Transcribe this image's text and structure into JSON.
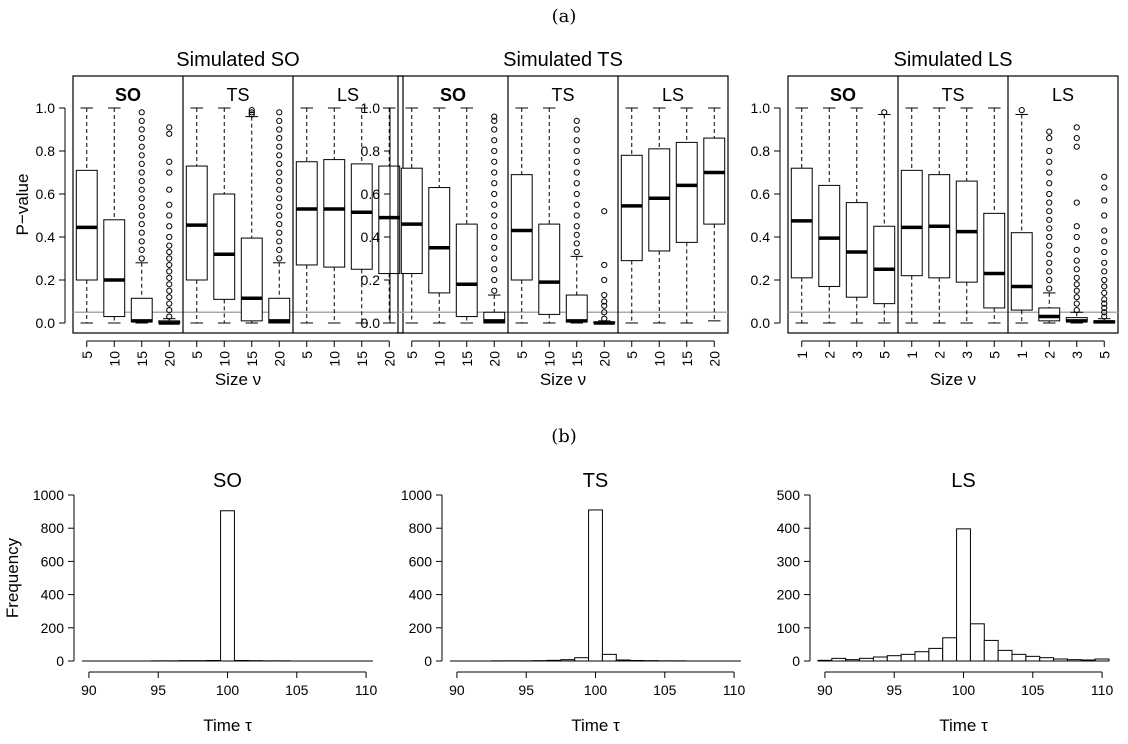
{
  "panel_labels": {
    "a": "(a)",
    "b": "(b)"
  },
  "chart_data": [
    {
      "type": "boxplot",
      "title": "Simulated SO",
      "ylabel": "P−value",
      "xlabel": "Size ν",
      "ylim": [
        0,
        1
      ],
      "yticks": [
        "0.0",
        "0.2",
        "0.4",
        "0.6",
        "0.8",
        "1.0"
      ],
      "reference_line": 0.05,
      "groups": [
        {
          "name": "SO",
          "boxes": [
            {
              "label": "5",
              "whislo": 0,
              "q1": 0.2,
              "med": 0.445,
              "q3": 0.71,
              "whishi": 1.0,
              "outliers": []
            },
            {
              "label": "10",
              "whislo": 0,
              "q1": 0.03,
              "med": 0.2,
              "q3": 0.48,
              "whishi": 1.0,
              "outliers": []
            },
            {
              "label": "15",
              "whislo": 0,
              "q1": 0.005,
              "med": 0.01,
              "q3": 0.115,
              "whishi": 0.28,
              "outliers": [
                0.3,
                0.34,
                0.38,
                0.42,
                0.46,
                0.5,
                0.54,
                0.58,
                0.62,
                0.66,
                0.7,
                0.74,
                0.78,
                0.82,
                0.86,
                0.9,
                0.94,
                0.98
              ]
            },
            {
              "label": "20",
              "whislo": 0,
              "q1": 0.0,
              "med": 0.0,
              "q3": 0.01,
              "whishi": 0.02,
              "outliers": [
                0.03,
                0.06,
                0.09,
                0.12,
                0.15,
                0.18,
                0.21,
                0.24,
                0.27,
                0.3,
                0.33,
                0.36,
                0.4,
                0.45,
                0.5,
                0.55,
                0.62,
                0.7,
                0.75,
                0.88,
                0.91
              ]
            }
          ]
        },
        {
          "name": "TS",
          "boxes": [
            {
              "label": "5",
              "whislo": 0,
              "q1": 0.2,
              "med": 0.455,
              "q3": 0.73,
              "whishi": 1.0,
              "outliers": []
            },
            {
              "label": "10",
              "whislo": 0,
              "q1": 0.11,
              "med": 0.32,
              "q3": 0.6,
              "whishi": 1.0,
              "outliers": []
            },
            {
              "label": "15",
              "whislo": 0,
              "q1": 0.01,
              "med": 0.115,
              "q3": 0.395,
              "whishi": 0.96,
              "outliers": [
                0.97,
                0.98,
                0.99
              ]
            },
            {
              "label": "20",
              "whislo": 0,
              "q1": 0.0,
              "med": 0.01,
              "q3": 0.115,
              "whishi": 0.28,
              "outliers": [
                0.3,
                0.34,
                0.38,
                0.42,
                0.46,
                0.5,
                0.54,
                0.58,
                0.62,
                0.66,
                0.7,
                0.74,
                0.78,
                0.82,
                0.86,
                0.9,
                0.94,
                0.98
              ]
            }
          ]
        },
        {
          "name": "LS",
          "boxes": [
            {
              "label": "5",
              "whislo": 0,
              "q1": 0.27,
              "med": 0.53,
              "q3": 0.75,
              "whishi": 1.0,
              "outliers": []
            },
            {
              "label": "10",
              "whislo": 0,
              "q1": 0.26,
              "med": 0.53,
              "q3": 0.76,
              "whishi": 1.0,
              "outliers": []
            },
            {
              "label": "15",
              "whislo": 0,
              "q1": 0.25,
              "med": 0.515,
              "q3": 0.74,
              "whishi": 1.0,
              "outliers": []
            },
            {
              "label": "20",
              "whislo": 0,
              "q1": 0.23,
              "med": 0.49,
              "q3": 0.73,
              "whishi": 1.0,
              "outliers": []
            }
          ]
        }
      ]
    },
    {
      "type": "boxplot",
      "title": "Simulated TS",
      "ylabel": "",
      "xlabel": "Size ν",
      "ylim": [
        0,
        1
      ],
      "yticks": [
        "0.0",
        "0.2",
        "0.4",
        "0.6",
        "0.8",
        "1.0"
      ],
      "reference_line": 0.05,
      "groups": [
        {
          "name": "SO",
          "boxes": [
            {
              "label": "5",
              "whislo": 0,
              "q1": 0.23,
              "med": 0.46,
              "q3": 0.72,
              "whishi": 1.0,
              "outliers": []
            },
            {
              "label": "10",
              "whislo": 0,
              "q1": 0.14,
              "med": 0.35,
              "q3": 0.63,
              "whishi": 1.0,
              "outliers": []
            },
            {
              "label": "15",
              "whislo": 0,
              "q1": 0.03,
              "med": 0.18,
              "q3": 0.46,
              "whishi": 1.0,
              "outliers": []
            },
            {
              "label": "20",
              "whislo": 0,
              "q1": 0.0,
              "med": 0.01,
              "q3": 0.05,
              "whishi": 0.13,
              "outliers": [
                0.15,
                0.2,
                0.25,
                0.3,
                0.35,
                0.4,
                0.45,
                0.5,
                0.55,
                0.6,
                0.65,
                0.7,
                0.75,
                0.8,
                0.85,
                0.9,
                0.94,
                0.96
              ]
            }
          ]
        },
        {
          "name": "TS",
          "boxes": [
            {
              "label": "5",
              "whislo": 0,
              "q1": 0.2,
              "med": 0.43,
              "q3": 0.69,
              "whishi": 1.0,
              "outliers": []
            },
            {
              "label": "10",
              "whislo": 0,
              "q1": 0.04,
              "med": 0.19,
              "q3": 0.46,
              "whishi": 1.0,
              "outliers": []
            },
            {
              "label": "15",
              "whislo": 0,
              "q1": 0.005,
              "med": 0.01,
              "q3": 0.13,
              "whishi": 0.31,
              "outliers": [
                0.33,
                0.37,
                0.41,
                0.45,
                0.5,
                0.55,
                0.6,
                0.65,
                0.7,
                0.75,
                0.8,
                0.85,
                0.9,
                0.94
              ]
            },
            {
              "label": "20",
              "whislo": 0,
              "q1": 0.0,
              "med": 0.0,
              "q3": 0.005,
              "whishi": 0.01,
              "outliers": [
                0.02,
                0.05,
                0.08,
                0.1,
                0.13,
                0.2,
                0.27,
                0.52
              ]
            }
          ]
        },
        {
          "name": "LS",
          "boxes": [
            {
              "label": "5",
              "whislo": 0,
              "q1": 0.29,
              "med": 0.545,
              "q3": 0.78,
              "whishi": 1.0,
              "outliers": []
            },
            {
              "label": "10",
              "whislo": 0,
              "q1": 0.335,
              "med": 0.58,
              "q3": 0.81,
              "whishi": 1.0,
              "outliers": []
            },
            {
              "label": "15",
              "whislo": 0,
              "q1": 0.375,
              "med": 0.64,
              "q3": 0.84,
              "whishi": 1.0,
              "outliers": []
            },
            {
              "label": "20",
              "whislo": 0.01,
              "q1": 0.46,
              "med": 0.7,
              "q3": 0.86,
              "whishi": 1.0,
              "outliers": []
            }
          ]
        }
      ]
    },
    {
      "type": "boxplot",
      "title": "Simulated LS",
      "ylabel": "",
      "xlabel": "Size ν",
      "ylim": [
        0,
        1
      ],
      "yticks": [
        "0.0",
        "0.2",
        "0.4",
        "0.6",
        "0.8",
        "1.0"
      ],
      "reference_line": 0.05,
      "groups": [
        {
          "name": "SO",
          "boxes": [
            {
              "label": "1",
              "whislo": 0,
              "q1": 0.21,
              "med": 0.475,
              "q3": 0.72,
              "whishi": 1.0,
              "outliers": []
            },
            {
              "label": "2",
              "whislo": 0,
              "q1": 0.17,
              "med": 0.395,
              "q3": 0.64,
              "whishi": 1.0,
              "outliers": []
            },
            {
              "label": "3",
              "whislo": 0,
              "q1": 0.12,
              "med": 0.33,
              "q3": 0.56,
              "whishi": 1.0,
              "outliers": []
            },
            {
              "label": "5",
              "whislo": 0,
              "q1": 0.09,
              "med": 0.25,
              "q3": 0.45,
              "whishi": 0.97,
              "outliers": [
                0.98
              ]
            }
          ]
        },
        {
          "name": "TS",
          "boxes": [
            {
              "label": "1",
              "whislo": 0,
              "q1": 0.22,
              "med": 0.445,
              "q3": 0.71,
              "whishi": 1.0,
              "outliers": []
            },
            {
              "label": "2",
              "whislo": 0,
              "q1": 0.21,
              "med": 0.45,
              "q3": 0.69,
              "whishi": 1.0,
              "outliers": []
            },
            {
              "label": "3",
              "whislo": 0,
              "q1": 0.19,
              "med": 0.425,
              "q3": 0.66,
              "whishi": 1.0,
              "outliers": []
            },
            {
              "label": "5",
              "whislo": 0,
              "q1": 0.07,
              "med": 0.23,
              "q3": 0.51,
              "whishi": 1.0,
              "outliers": []
            }
          ]
        },
        {
          "name": "LS",
          "boxes": [
            {
              "label": "1",
              "whislo": 0,
              "q1": 0.06,
              "med": 0.17,
              "q3": 0.42,
              "whishi": 0.97,
              "outliers": [
                0.99
              ]
            },
            {
              "label": "2",
              "whislo": 0,
              "q1": 0.01,
              "med": 0.03,
              "q3": 0.07,
              "whishi": 0.14,
              "outliers": [
                0.16,
                0.2,
                0.24,
                0.28,
                0.32,
                0.36,
                0.4,
                0.44,
                0.48,
                0.52,
                0.56,
                0.6,
                0.65,
                0.7,
                0.75,
                0.8,
                0.86,
                0.89
              ]
            },
            {
              "label": "3",
              "whislo": 0,
              "q1": 0.005,
              "med": 0.01,
              "q3": 0.025,
              "whishi": 0.05,
              "outliers": [
                0.06,
                0.09,
                0.12,
                0.15,
                0.18,
                0.21,
                0.25,
                0.29,
                0.34,
                0.4,
                0.45,
                0.56,
                0.82,
                0.86,
                0.91
              ]
            },
            {
              "label": "5",
              "whislo": 0,
              "q1": 0.0,
              "med": 0.005,
              "q3": 0.01,
              "whishi": 0.02,
              "outliers": [
                0.03,
                0.05,
                0.07,
                0.09,
                0.11,
                0.14,
                0.17,
                0.2,
                0.24,
                0.28,
                0.33,
                0.38,
                0.43,
                0.5,
                0.57,
                0.63,
                0.68
              ]
            }
          ]
        }
      ]
    },
    {
      "type": "bar",
      "title": "SO",
      "xlabel": "Time τ",
      "ylabel": "Frequency",
      "xlim": [
        89.5,
        110.5
      ],
      "xticks": [
        90,
        95,
        100,
        105,
        110
      ],
      "ylim": [
        0,
        1000
      ],
      "yticks": [
        0,
        200,
        400,
        600,
        800,
        1000
      ],
      "bins": [
        90,
        91,
        92,
        93,
        94,
        95,
        96,
        97,
        98,
        99,
        100,
        101,
        102,
        103,
        104,
        105,
        106,
        107,
        108,
        109,
        110
      ],
      "values": [
        0,
        0,
        0,
        0,
        0,
        1,
        1,
        2,
        2,
        3,
        905,
        3,
        2,
        1,
        1,
        0,
        0,
        0,
        0,
        0,
        0
      ]
    },
    {
      "type": "bar",
      "title": "TS",
      "xlabel": "Time τ",
      "ylabel": "",
      "xlim": [
        89.5,
        110.5
      ],
      "xticks": [
        90,
        95,
        100,
        105,
        110
      ],
      "ylim": [
        0,
        1000
      ],
      "yticks": [
        0,
        200,
        400,
        600,
        800,
        1000
      ],
      "bins": [
        90,
        91,
        92,
        93,
        94,
        95,
        96,
        97,
        98,
        99,
        100,
        101,
        102,
        103,
        104,
        105,
        106,
        107,
        108,
        109,
        110
      ],
      "values": [
        0,
        0,
        0,
        1,
        1,
        1,
        2,
        4,
        8,
        20,
        910,
        40,
        6,
        3,
        2,
        1,
        1,
        0,
        0,
        0,
        0
      ]
    },
    {
      "type": "bar",
      "title": "LS",
      "xlabel": "Time τ",
      "ylabel": "",
      "xlim": [
        89.5,
        110.5
      ],
      "xticks": [
        90,
        95,
        100,
        105,
        110
      ],
      "ylim": [
        0,
        500
      ],
      "yticks": [
        0,
        100,
        200,
        300,
        400,
        500
      ],
      "bins": [
        90,
        91,
        92,
        93,
        94,
        95,
        96,
        97,
        98,
        99,
        100,
        101,
        102,
        103,
        104,
        105,
        106,
        107,
        108,
        109,
        110
      ],
      "values": [
        2,
        8,
        4,
        8,
        12,
        16,
        20,
        28,
        38,
        70,
        398,
        112,
        62,
        32,
        20,
        14,
        10,
        6,
        4,
        3,
        6
      ]
    }
  ]
}
